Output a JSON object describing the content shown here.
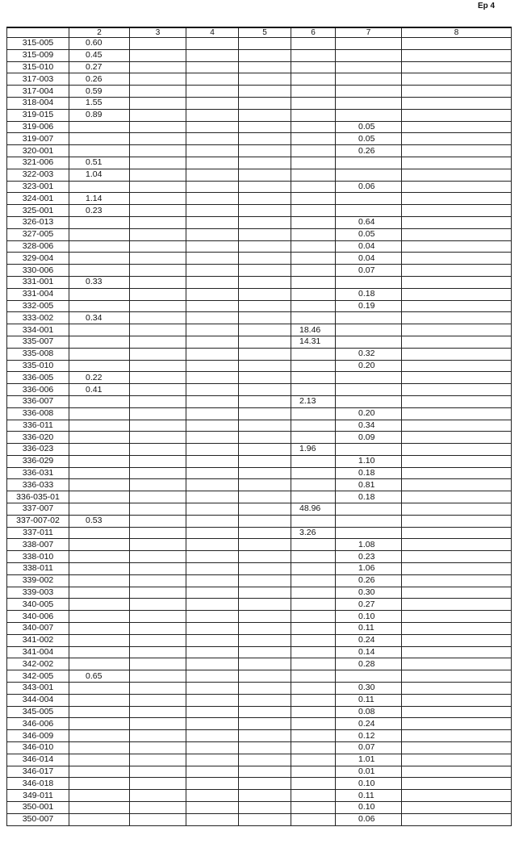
{
  "page_label": "Ep 4",
  "columns": [
    "",
    "2",
    "3",
    "4",
    "5",
    "6",
    "7",
    "8"
  ],
  "rows": [
    [
      "315-005",
      "0.60",
      "",
      "",
      "",
      "",
      "",
      ""
    ],
    [
      "315-009",
      "0.45",
      "",
      "",
      "",
      "",
      "",
      ""
    ],
    [
      "315-010",
      "0.27",
      "",
      "",
      "",
      "",
      "",
      ""
    ],
    [
      "317-003",
      "0.26",
      "",
      "",
      "",
      "",
      "",
      ""
    ],
    [
      "317-004",
      "0.59",
      "",
      "",
      "",
      "",
      "",
      ""
    ],
    [
      "318-004",
      "1.55",
      "",
      "",
      "",
      "",
      "",
      ""
    ],
    [
      "319-015",
      "0.89",
      "",
      "",
      "",
      "",
      "",
      ""
    ],
    [
      "319-006",
      "",
      "",
      "",
      "",
      "",
      "0.05",
      ""
    ],
    [
      "319-007",
      "",
      "",
      "",
      "",
      "",
      "0.05",
      ""
    ],
    [
      "320-001",
      "",
      "",
      "",
      "",
      "",
      "0.26",
      ""
    ],
    [
      "321-006",
      "0.51",
      "",
      "",
      "",
      "",
      "",
      ""
    ],
    [
      "322-003",
      "1.04",
      "",
      "",
      "",
      "",
      "",
      ""
    ],
    [
      "323-001",
      "",
      "",
      "",
      "",
      "",
      "0.06",
      ""
    ],
    [
      "324-001",
      "1.14",
      "",
      "",
      "",
      "",
      "",
      ""
    ],
    [
      "325-001",
      "0.23",
      "",
      "",
      "",
      "",
      "",
      ""
    ],
    [
      "326-013",
      "",
      "",
      "",
      "",
      "",
      "0.64",
      ""
    ],
    [
      "327-005",
      "",
      "",
      "",
      "",
      "",
      "0.05",
      ""
    ],
    [
      "328-006",
      "",
      "",
      "",
      "",
      "",
      "0.04",
      ""
    ],
    [
      "329-004",
      "",
      "",
      "",
      "",
      "",
      "0.04",
      ""
    ],
    [
      "330-006",
      "",
      "",
      "",
      "",
      "",
      "0.07",
      ""
    ],
    [
      "331-001",
      "0.33",
      "",
      "",
      "",
      "",
      "",
      ""
    ],
    [
      "331-004",
      "",
      "",
      "",
      "",
      "",
      "0.18",
      ""
    ],
    [
      "332-005",
      "",
      "",
      "",
      "",
      "",
      "0.19",
      ""
    ],
    [
      "333-002",
      "0.34",
      "",
      "",
      "",
      "",
      "",
      ""
    ],
    [
      "334-001",
      "",
      "",
      "",
      "",
      "18.46",
      "",
      ""
    ],
    [
      "335-007",
      "",
      "",
      "",
      "",
      "14.31",
      "",
      ""
    ],
    [
      "335-008",
      "",
      "",
      "",
      "",
      "",
      "0.32",
      ""
    ],
    [
      "335-010",
      "",
      "",
      "",
      "",
      "",
      "0.20",
      ""
    ],
    [
      "336-005",
      "0.22",
      "",
      "",
      "",
      "",
      "",
      ""
    ],
    [
      "336-006",
      "0.41",
      "",
      "",
      "",
      "",
      "",
      ""
    ],
    [
      "336-007",
      "",
      "",
      "",
      "",
      "2.13",
      "",
      ""
    ],
    [
      "336-008",
      "",
      "",
      "",
      "",
      "",
      "0.20",
      ""
    ],
    [
      "336-011",
      "",
      "",
      "",
      "",
      "",
      "0.34",
      ""
    ],
    [
      "336-020",
      "",
      "",
      "",
      "",
      "",
      "0.09",
      ""
    ],
    [
      "336-023",
      "",
      "",
      "",
      "",
      "1.96",
      "",
      ""
    ],
    [
      "336-029",
      "",
      "",
      "",
      "",
      "",
      "1.10",
      ""
    ],
    [
      "336-031",
      "",
      "",
      "",
      "",
      "",
      "0.18",
      ""
    ],
    [
      "336-033",
      "",
      "",
      "",
      "",
      "",
      "0.81",
      ""
    ],
    [
      "336-035-01",
      "",
      "",
      "",
      "",
      "",
      "0.18",
      ""
    ],
    [
      "337-007",
      "",
      "",
      "",
      "",
      "48.96",
      "",
      ""
    ],
    [
      "337-007-02",
      "0.53",
      "",
      "",
      "",
      "",
      "",
      ""
    ],
    [
      "337-011",
      "",
      "",
      "",
      "",
      "3.26",
      "",
      ""
    ],
    [
      "338-007",
      "",
      "",
      "",
      "",
      "",
      "1.08",
      ""
    ],
    [
      "338-010",
      "",
      "",
      "",
      "",
      "",
      "0.23",
      ""
    ],
    [
      "338-011",
      "",
      "",
      "",
      "",
      "",
      "1.06",
      ""
    ],
    [
      "339-002",
      "",
      "",
      "",
      "",
      "",
      "0.26",
      ""
    ],
    [
      "339-003",
      "",
      "",
      "",
      "",
      "",
      "0.30",
      ""
    ],
    [
      "340-005",
      "",
      "",
      "",
      "",
      "",
      "0.27",
      ""
    ],
    [
      "340-006",
      "",
      "",
      "",
      "",
      "",
      "0.10",
      ""
    ],
    [
      "340-007",
      "",
      "",
      "",
      "",
      "",
      "0.11",
      ""
    ],
    [
      "341-002",
      "",
      "",
      "",
      "",
      "",
      "0.24",
      ""
    ],
    [
      "341-004",
      "",
      "",
      "",
      "",
      "",
      "0.14",
      ""
    ],
    [
      "342-002",
      "",
      "",
      "",
      "",
      "",
      "0.28",
      ""
    ],
    [
      "342-005",
      "0.65",
      "",
      "",
      "",
      "",
      "",
      ""
    ],
    [
      "343-001",
      "",
      "",
      "",
      "",
      "",
      "0.30",
      ""
    ],
    [
      "344-004",
      "",
      "",
      "",
      "",
      "",
      "0.11",
      ""
    ],
    [
      "345-005",
      "",
      "",
      "",
      "",
      "",
      "0.08",
      ""
    ],
    [
      "346-006",
      "",
      "",
      "",
      "",
      "",
      "0.24",
      ""
    ],
    [
      "346-009",
      "",
      "",
      "",
      "",
      "",
      "0.12",
      ""
    ],
    [
      "346-010",
      "",
      "",
      "",
      "",
      "",
      "0.07",
      ""
    ],
    [
      "346-014",
      "",
      "",
      "",
      "",
      "",
      "1.01",
      ""
    ],
    [
      "346-017",
      "",
      "",
      "",
      "",
      "",
      "0.01",
      ""
    ],
    [
      "346-018",
      "",
      "",
      "",
      "",
      "",
      "0.10",
      ""
    ],
    [
      "349-011",
      "",
      "",
      "",
      "",
      "",
      "0.11",
      ""
    ],
    [
      "350-001",
      "",
      "",
      "",
      "",
      "",
      "0.10",
      ""
    ],
    [
      "350-007",
      "",
      "",
      "",
      "",
      "",
      "0.06",
      ""
    ]
  ]
}
